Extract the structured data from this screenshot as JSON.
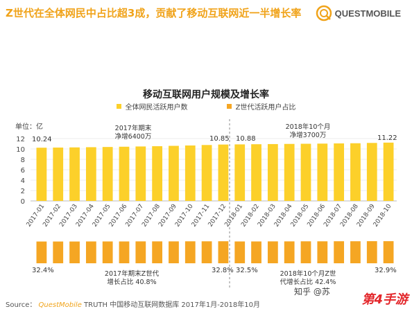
{
  "headline": "Z世代在全体网民中占比超3成，贡献了移动互联网近一半增长率",
  "brand": {
    "name": "QUESTMOBILE",
    "logo_icon": "questmobile-logo-icon",
    "color": "#f0a31a"
  },
  "chart_data": {
    "type": "bar",
    "title": "移动互联网用户规模及增长率",
    "unit_label": "单位：亿",
    "yticks": [
      0,
      2,
      4,
      6,
      8,
      10,
      12
    ],
    "ylim": [
      0,
      12
    ],
    "categories": [
      "2017-01",
      "2017-02",
      "2017-03",
      "2017-04",
      "2017-05",
      "2017-06",
      "2017-07",
      "2017-08",
      "2017-09",
      "2017-10",
      "2017-11",
      "2017-12",
      "2018-01",
      "2018-02",
      "2018-03",
      "2018-04",
      "2018-05",
      "2018-06",
      "2018-07",
      "2018-08",
      "2018-09",
      "2018-10"
    ],
    "series": [
      {
        "name": "全体网民活跃用户数",
        "color": "#fcd02a",
        "values": [
          10.24,
          10.27,
          10.3,
          10.34,
          10.38,
          10.43,
          10.48,
          10.53,
          10.6,
          10.67,
          10.76,
          10.85,
          10.88,
          10.91,
          10.94,
          10.97,
          11.0,
          11.03,
          11.07,
          11.1,
          11.16,
          11.22
        ]
      },
      {
        "name": "Z世代活跃用户占比",
        "color": "#f5a623",
        "values": [
          32.4,
          32.4,
          32.4,
          32.5,
          32.5,
          32.5,
          32.6,
          32.6,
          32.6,
          32.7,
          32.7,
          32.8,
          32.5,
          32.5,
          32.6,
          32.6,
          32.7,
          32.7,
          32.8,
          32.8,
          32.9,
          32.9
        ]
      }
    ],
    "data_labels": {
      "first_value": "10.24",
      "dec2017_value": "10.85",
      "jan2018_value": "10.88",
      "last_value": "11.22",
      "share_first": "32.4%",
      "share_dec2017": "32.8%",
      "share_jan2018": "32.5%",
      "share_last": "32.9%"
    },
    "annotations": {
      "top_2017_line1": "2017年期末",
      "top_2017_line2": "净增6400万",
      "top_2018_line1": "2018年10个月",
      "top_2018_line2": "净增3700万",
      "bottom_2017_line1": "2017年期末Z世代",
      "bottom_2017_line2": "增长占比 40.8%",
      "bottom_2018_line1": "2018年10个月Z世",
      "bottom_2018_line2": "代增长占比 42.4%"
    }
  },
  "source": {
    "label": "Source：",
    "brand": "QuestMobile",
    "text": "TRUTH 中国移动互联网数据库 2017年1月-2018年10月"
  },
  "watermarks": {
    "zhihu": "知乎 @苏",
    "site": "第4手游"
  }
}
